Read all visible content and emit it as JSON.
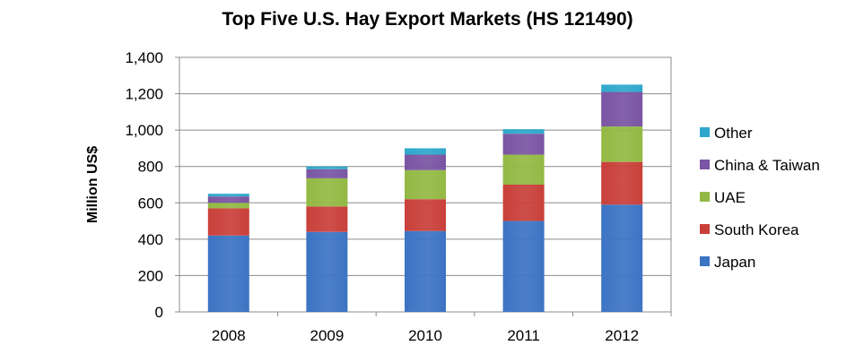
{
  "chart_data": {
    "type": "bar",
    "stacked": true,
    "title": "Top Five U.S. Hay Export Markets (HS 121490)",
    "xlabel": "",
    "ylabel": "Million US$",
    "ylim": [
      0,
      1400
    ],
    "yticks": [
      0,
      200,
      400,
      600,
      800,
      1000,
      1200,
      1400
    ],
    "ytick_labels": [
      "0",
      "200",
      "400",
      "600",
      "800",
      "1,000",
      "1,200",
      "1,400"
    ],
    "grid": true,
    "legend_position": "right",
    "categories": [
      "2008",
      "2009",
      "2010",
      "2011",
      "2012"
    ],
    "series": [
      {
        "name": "Japan",
        "color": "#3C74C4",
        "values": [
          420,
          440,
          445,
          500,
          590
        ]
      },
      {
        "name": "South Korea",
        "color": "#C9403A",
        "values": [
          150,
          140,
          175,
          200,
          235
        ]
      },
      {
        "name": "UAE",
        "color": "#93B944",
        "values": [
          30,
          155,
          160,
          165,
          195
        ]
      },
      {
        "name": "China & Taiwan",
        "color": "#7A55A3",
        "values": [
          35,
          50,
          85,
          115,
          190
        ]
      },
      {
        "name": "Other",
        "color": "#2EA8CC",
        "values": [
          15,
          15,
          35,
          25,
          40
        ]
      }
    ]
  }
}
